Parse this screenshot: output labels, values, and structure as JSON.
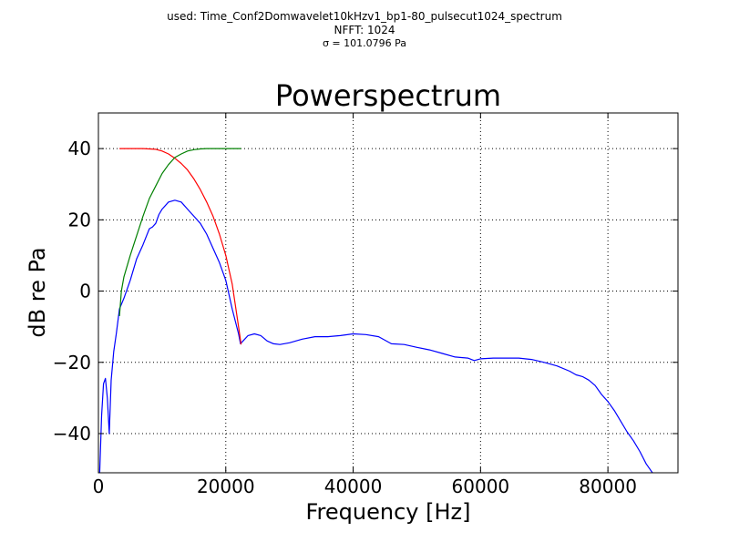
{
  "figure": {
    "suptitle_lines": [
      "used: Time_Conf2Domwavelet10kHzv1_bp1-80_pulsecut1024_spectrum",
      "NFFT: 1024",
      "σ = 101.0796 Pa"
    ]
  },
  "chart_data": {
    "type": "line",
    "title": "Powerspectrum",
    "xlabel": "Frequency [Hz]",
    "ylabel": "dB re Pa",
    "xlim": [
      0,
      91000
    ],
    "ylim": [
      -51,
      50
    ],
    "xticks": [
      0,
      20000,
      40000,
      60000,
      80000
    ],
    "xtick_labels": [
      "0",
      "20000",
      "40000",
      "60000",
      "80000"
    ],
    "yticks": [
      -40,
      -20,
      0,
      20,
      40
    ],
    "ytick_labels": [
      "−40",
      "−20",
      "0",
      "20",
      "40"
    ],
    "grid": true,
    "series": [
      {
        "color": "#0000ff",
        "x": [
          200,
          500,
          800,
          1100,
          1400,
          1700,
          2000,
          2400,
          2800,
          3300,
          4000,
          5000,
          6000,
          7000,
          8000,
          8500,
          9000,
          9500,
          10000,
          11000,
          12000,
          13000,
          14000,
          15000,
          16000,
          17000,
          18000,
          19000,
          20000,
          21000,
          22000,
          22300,
          22700,
          23500,
          24500,
          25500,
          26500,
          27500,
          28500,
          30000,
          32000,
          34000,
          36000,
          38000,
          40000,
          42000,
          44000,
          46000,
          48000,
          50000,
          52000,
          54000,
          56000,
          58000,
          59000,
          60000,
          62000,
          64000,
          66000,
          68000,
          70000,
          72000,
          74000,
          75000,
          76000,
          77000,
          78000,
          79000,
          80000,
          81000,
          82000,
          83000,
          84000,
          85000,
          86000,
          87000,
          88000
        ],
        "values": [
          -51,
          -35,
          -26,
          -24.5,
          -30,
          -40,
          -25,
          -17,
          -12,
          -5,
          -2,
          3,
          9,
          13,
          17.5,
          18,
          19,
          21.5,
          23,
          25,
          25.5,
          25,
          23,
          21,
          19,
          16,
          12,
          8,
          3,
          -5,
          -12,
          -14.8,
          -14,
          -12.5,
          -12,
          -12.5,
          -14,
          -14.8,
          -15,
          -14.5,
          -13.5,
          -12.8,
          -12.8,
          -12.5,
          -12,
          -12.2,
          -12.8,
          -14.8,
          -15,
          -15.8,
          -16.5,
          -17.5,
          -18.5,
          -18.8,
          -19.5,
          -19,
          -18.8,
          -18.8,
          -18.8,
          -19.2,
          -20,
          -21,
          -22.5,
          -23.5,
          -24,
          -25,
          -26.5,
          -29,
          -31,
          -33.5,
          -36.5,
          -39.5,
          -42,
          -45,
          -48.5,
          -51,
          -52
        ]
      },
      {
        "color": "#ff0000",
        "x": [
          3300,
          5000,
          7000,
          9000,
          10000,
          11000,
          12000,
          13000,
          14000,
          15000,
          16000,
          17000,
          18000,
          19000,
          20000,
          21000,
          22000,
          22400
        ],
        "values": [
          40,
          40,
          40,
          39.8,
          39.3,
          38.5,
          37.3,
          35.8,
          34,
          31.5,
          28.5,
          25,
          21,
          16,
          10,
          2,
          -10,
          -15
        ]
      },
      {
        "color": "#008000",
        "x": [
          3300,
          3600,
          4000,
          5000,
          6000,
          7000,
          8000,
          9000,
          10000,
          11000,
          12000,
          13000,
          14000,
          15000,
          16000,
          17000,
          18000,
          20000,
          22400
        ],
        "values": [
          -7,
          0,
          4,
          10,
          15.5,
          21,
          26,
          29.5,
          33,
          35.5,
          37.5,
          38.5,
          39.3,
          39.7,
          39.9,
          40,
          40,
          40,
          40
        ]
      }
    ]
  }
}
